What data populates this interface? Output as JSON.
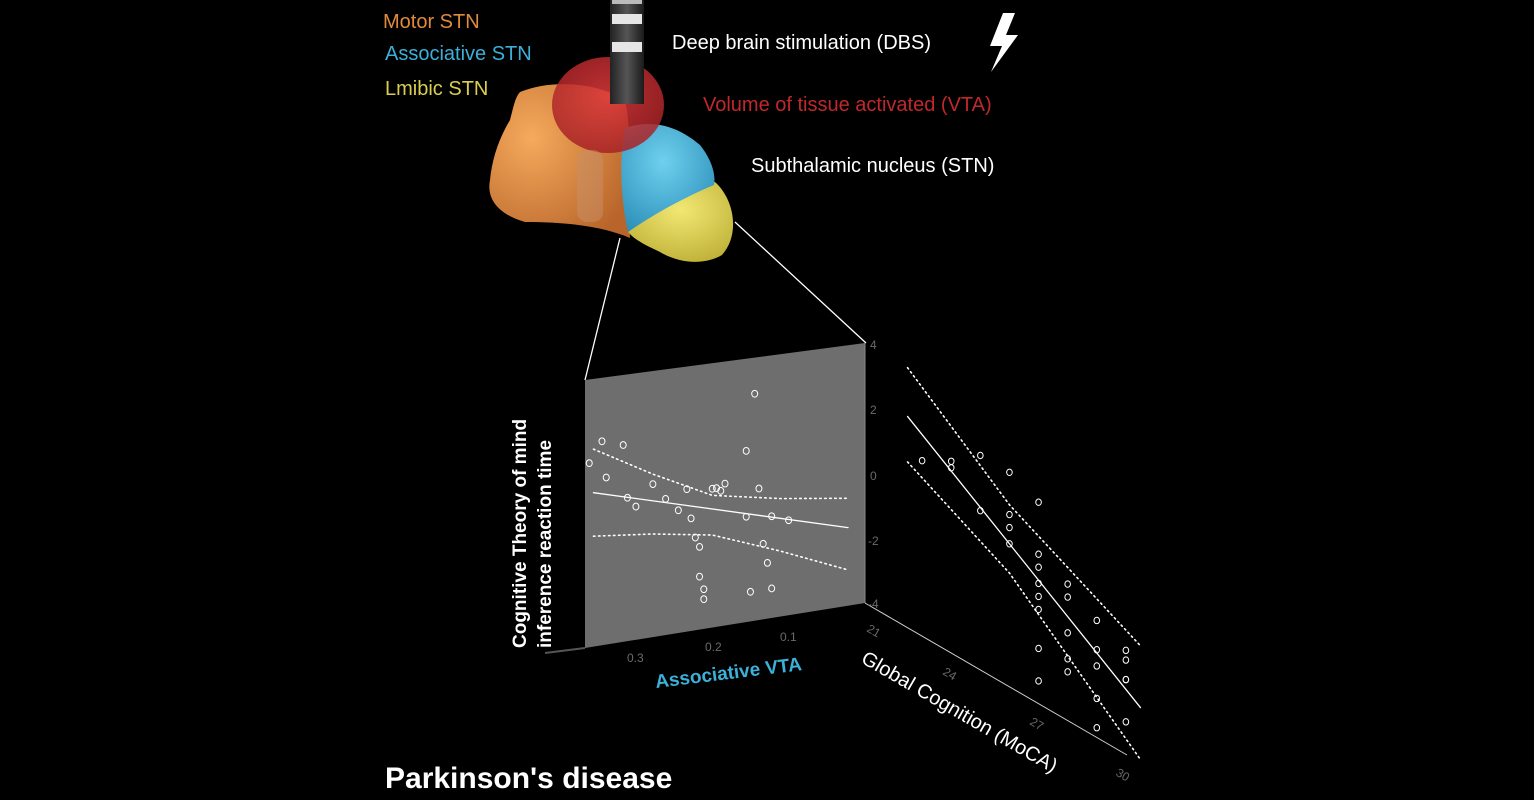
{
  "legend": {
    "motor": "Motor STN",
    "associative": "Associative STN",
    "limbic": "Lmibic STN"
  },
  "annotations": {
    "dbs": "Deep brain stimulation (DBS)",
    "vta": "Volume of tissue activated (VTA)",
    "stn": "Subthalamic nucleus (STN)"
  },
  "footer": {
    "title": "Parkinson's disease"
  },
  "colors": {
    "motor": "#e08a3c",
    "associative": "#3bb0d8",
    "limbic": "#d9cf4e",
    "vta": "#c0282c",
    "background": "#000000",
    "plot_panel": "#6e6e6e",
    "lightning": "lightning-bolt-icon"
  },
  "chart_data": [
    {
      "type": "scatter",
      "panel": "front",
      "xlabel": "Associative VTA",
      "ylabel": "Cognitive Theory of mind\ninference reaction time",
      "x_ticks": [
        "0.3",
        "0.2",
        "0.1"
      ],
      "y_ticks": [
        "4",
        "2",
        "0",
        "-2",
        "-4"
      ],
      "xlim": [
        0.33,
        0.0
      ],
      "ylim": [
        -4,
        4
      ],
      "points": [
        [
          0.325,
          1.5
        ],
        [
          0.31,
          2.1
        ],
        [
          0.305,
          1.0
        ],
        [
          0.285,
          1.9
        ],
        [
          0.28,
          0.3
        ],
        [
          0.27,
          0.0
        ],
        [
          0.25,
          0.6
        ],
        [
          0.235,
          0.1
        ],
        [
          0.22,
          -0.3
        ],
        [
          0.21,
          0.3
        ],
        [
          0.205,
          -0.6
        ],
        [
          0.2,
          -1.2
        ],
        [
          0.195,
          -1.5
        ],
        [
          0.195,
          -2.4
        ],
        [
          0.19,
          -2.8
        ],
        [
          0.19,
          -3.1
        ],
        [
          0.18,
          0.2
        ],
        [
          0.175,
          0.2
        ],
        [
          0.17,
          0.1
        ],
        [
          0.165,
          0.3
        ],
        [
          0.14,
          1.2
        ],
        [
          0.14,
          -0.8
        ],
        [
          0.135,
          -3.1
        ],
        [
          0.13,
          2.9
        ],
        [
          0.125,
          0.0
        ],
        [
          0.12,
          -1.7
        ],
        [
          0.115,
          -2.3
        ],
        [
          0.11,
          -0.9
        ],
        [
          0.11,
          -3.1
        ],
        [
          0.09,
          -1.1
        ]
      ],
      "fit": {
        "from": [
          0.32,
          0.6
        ],
        "to": [
          0.02,
          -1.6
        ]
      },
      "ci_upper": [
        [
          0.32,
          1.9
        ],
        [
          0.25,
          0.9
        ],
        [
          0.18,
          0.0
        ],
        [
          0.1,
          -0.4
        ],
        [
          0.02,
          -0.7
        ]
      ],
      "ci_lower": [
        [
          0.32,
          -0.7
        ],
        [
          0.25,
          -0.9
        ],
        [
          0.18,
          -1.2
        ],
        [
          0.1,
          -2.0
        ],
        [
          0.02,
          -2.9
        ]
      ]
    },
    {
      "type": "scatter",
      "panel": "side",
      "xlabel": "Global Cognition (MoCA)",
      "x_ticks": [
        "21",
        "24",
        "27",
        "30"
      ],
      "xlim": [
        21,
        30
      ],
      "ylim": [
        -4,
        4
      ],
      "points": [
        [
          22,
          0.9
        ],
        [
          23,
          1.4
        ],
        [
          23,
          1.2
        ],
        [
          24,
          2.1
        ],
        [
          24,
          0.4
        ],
        [
          25,
          0.8
        ],
        [
          25,
          0.4
        ],
        [
          25,
          2.1
        ],
        [
          25,
          -0.1
        ],
        [
          26,
          -0.3
        ],
        [
          26,
          1.7
        ],
        [
          26,
          0.1
        ],
        [
          26,
          -0.8
        ],
        [
          26,
          -1.2
        ],
        [
          26,
          -1.6
        ],
        [
          26,
          -2.8
        ],
        [
          26,
          -3.8
        ],
        [
          27,
          -0.3
        ],
        [
          27,
          -0.7
        ],
        [
          27,
          -1.8
        ],
        [
          27,
          -2.6
        ],
        [
          27,
          -3.0
        ],
        [
          28,
          -0.9
        ],
        [
          28,
          -1.8
        ],
        [
          28,
          -2.3
        ],
        [
          28,
          -3.3
        ],
        [
          28,
          -4.2
        ],
        [
          29,
          -1.3
        ],
        [
          29,
          -1.6
        ],
        [
          29,
          -2.2
        ],
        [
          29,
          -2.2
        ],
        [
          29,
          -3.5
        ]
      ],
      "fit": {
        "from": [
          21.5,
          2.0
        ],
        "to": [
          29.5,
          -2.8
        ]
      }
    }
  ]
}
